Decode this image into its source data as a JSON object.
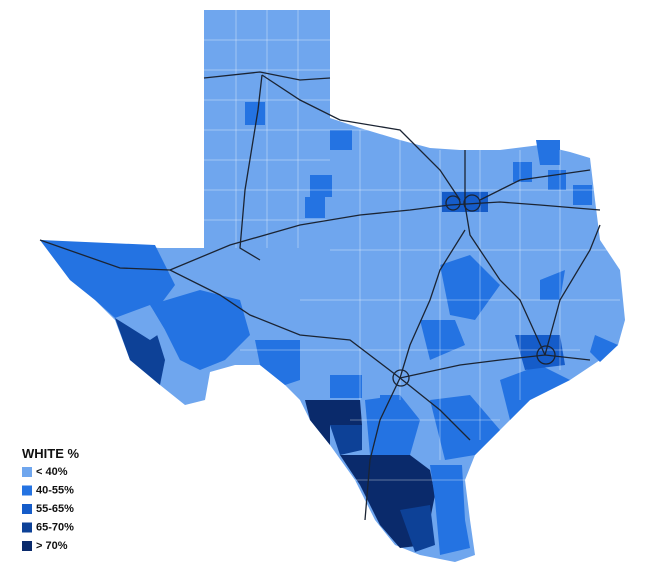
{
  "legend": {
    "title": "WHITE %",
    "items": [
      {
        "label": "< 40%",
        "color": "#6fa6ee"
      },
      {
        "label": "40-55%",
        "color": "#2473e2"
      },
      {
        "label": "55-65%",
        "color": "#155cc9"
      },
      {
        "label": "65-70%",
        "color": "#0d4197"
      },
      {
        "label": "> 70%",
        "color": "#0a2a6b"
      }
    ]
  }
}
